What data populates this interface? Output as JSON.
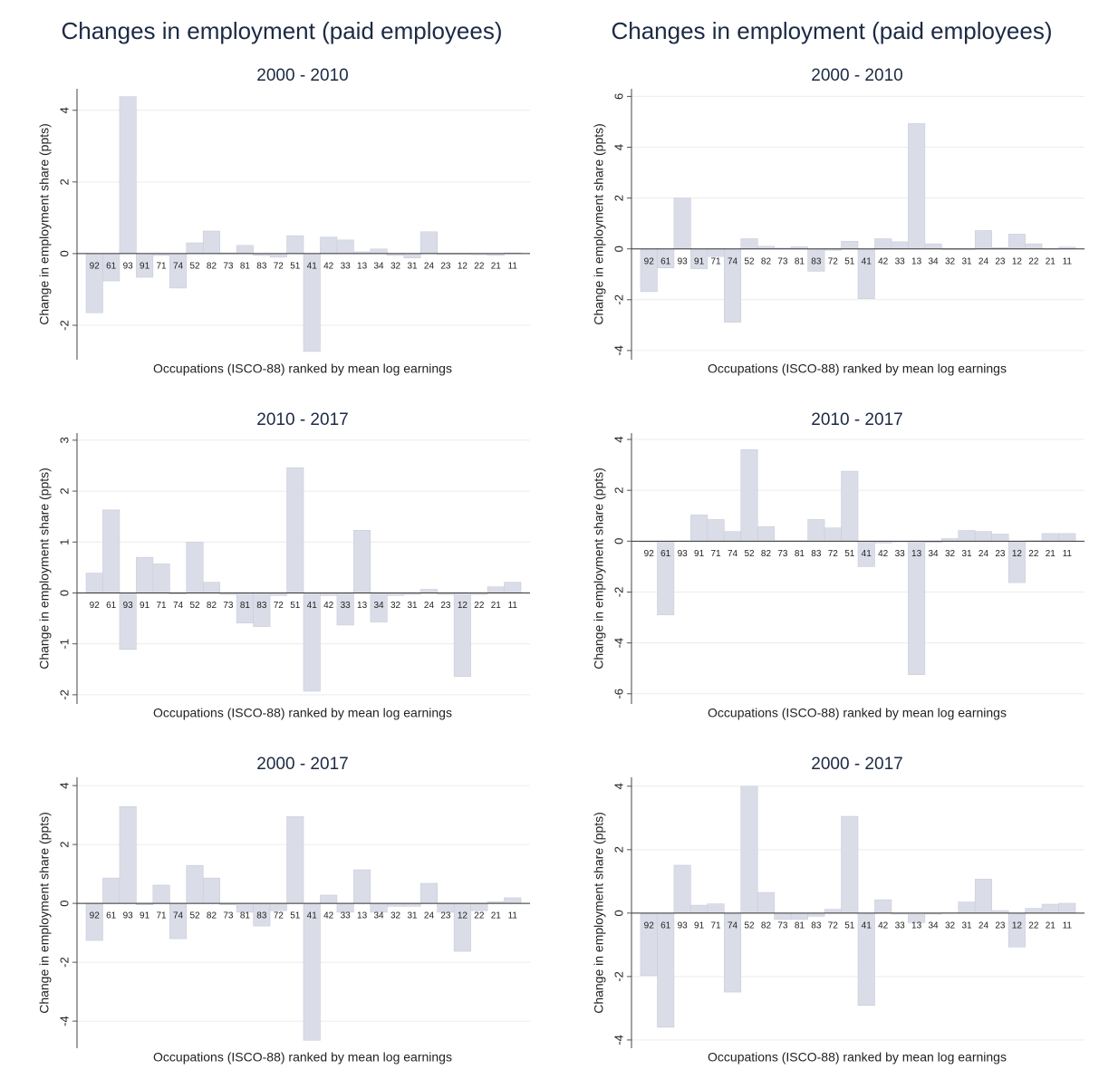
{
  "headings": [
    "Changes in employment (paid employees)",
    "Changes in employment (paid employees)"
  ],
  "chart_data": [
    {
      "type": "bar",
      "title": "2000 - 2010",
      "x_label": "Occupations (ISCO-88) ranked by mean log earnings",
      "y_label": "Change in employment share (ppts)",
      "color": "#dadde8",
      "grid": true,
      "categories": [
        "92",
        "61",
        "93",
        "91",
        "71",
        "74",
        "52",
        "82",
        "73",
        "81",
        "83",
        "72",
        "51",
        "41",
        "42",
        "33",
        "13",
        "34",
        "32",
        "31",
        "24",
        "23",
        "12",
        "22",
        "21",
        "11"
      ],
      "values": [
        -1.65,
        -0.76,
        4.38,
        -0.66,
        -0.05,
        -0.96,
        0.3,
        0.63,
        0.02,
        0.23,
        -0.05,
        -0.1,
        0.5,
        -2.73,
        0.46,
        0.38,
        0.05,
        0.13,
        -0.05,
        -0.12,
        0.61,
        -0.02,
        -0.02,
        -0.03,
        -0.05,
        0.02
      ],
      "ylim": [
        -2.96,
        4.6
      ],
      "yticks": [
        -2,
        0,
        2,
        4
      ]
    },
    {
      "type": "bar",
      "title": "2000 - 2010",
      "x_label": "Occupations (ISCO-88) ranked by mean log earnings",
      "y_label": "Change in employment share (ppts)",
      "color": "#dadde8",
      "grid": true,
      "categories": [
        "92",
        "61",
        "93",
        "91",
        "71",
        "74",
        "52",
        "82",
        "73",
        "81",
        "83",
        "72",
        "51",
        "41",
        "42",
        "33",
        "13",
        "34",
        "32",
        "31",
        "24",
        "23",
        "12",
        "22",
        "21",
        "11"
      ],
      "values": [
        -1.68,
        -0.75,
        2.0,
        -0.78,
        -0.3,
        -2.89,
        0.4,
        0.1,
        0.03,
        0.08,
        -0.88,
        -0.05,
        0.3,
        -1.96,
        0.4,
        0.28,
        4.93,
        0.2,
        -0.03,
        -0.03,
        0.72,
        0.05,
        0.58,
        0.2,
        -0.02,
        0.07
      ],
      "ylim": [
        -4.36,
        6.3
      ],
      "yticks": [
        -4,
        -2,
        0,
        2,
        4,
        6
      ]
    },
    {
      "type": "bar",
      "title": "2010 - 2017",
      "x_label": "Occupations (ISCO-88) ranked by mean log earnings",
      "y_label": "Change in employment share (ppts)",
      "color": "#dadde8",
      "grid": true,
      "categories": [
        "92",
        "61",
        "93",
        "91",
        "71",
        "74",
        "52",
        "82",
        "73",
        "81",
        "83",
        "72",
        "51",
        "41",
        "42",
        "33",
        "13",
        "34",
        "32",
        "31",
        "24",
        "23",
        "12",
        "22",
        "21",
        "11"
      ],
      "values": [
        0.39,
        1.63,
        -1.11,
        0.7,
        0.57,
        -0.02,
        1.0,
        0.21,
        -0.03,
        -0.59,
        -0.66,
        -0.05,
        2.46,
        -1.93,
        -0.05,
        -0.63,
        1.23,
        -0.57,
        -0.05,
        -0.03,
        0.07,
        -0.03,
        -1.64,
        -0.03,
        0.12,
        0.21
      ],
      "ylim": [
        -2.18,
        3.14
      ],
      "yticks": [
        -2,
        -1,
        0,
        1,
        2,
        3
      ]
    },
    {
      "type": "bar",
      "title": "2010 - 2017",
      "x_label": "Occupations (ISCO-88) ranked by mean log earnings",
      "y_label": "Change in employment share (ppts)",
      "color": "#dadde8",
      "grid": true,
      "categories": [
        "92",
        "61",
        "93",
        "91",
        "71",
        "74",
        "52",
        "82",
        "73",
        "81",
        "83",
        "72",
        "51",
        "41",
        "42",
        "33",
        "13",
        "34",
        "32",
        "31",
        "24",
        "23",
        "12",
        "22",
        "21",
        "11"
      ],
      "values": [
        -0.03,
        -2.9,
        0.01,
        1.03,
        0.85,
        0.38,
        3.6,
        0.57,
        0.02,
        0.02,
        0.85,
        0.52,
        2.75,
        -1.0,
        -0.07,
        -0.03,
        -5.25,
        -0.05,
        0.1,
        0.42,
        0.38,
        0.28,
        -1.63,
        0.02,
        0.3,
        0.3
      ],
      "ylim": [
        -6.4,
        4.25
      ],
      "yticks": [
        -6,
        -4,
        -2,
        0,
        2,
        4
      ]
    },
    {
      "type": "bar",
      "title": "2000 - 2017",
      "x_label": "Occupations (ISCO-88) ranked by mean log earnings",
      "y_label": "Change in employment share (ppts)",
      "color": "#dadde8",
      "grid": true,
      "categories": [
        "92",
        "61",
        "93",
        "91",
        "71",
        "74",
        "52",
        "82",
        "73",
        "81",
        "83",
        "72",
        "51",
        "41",
        "42",
        "33",
        "13",
        "34",
        "32",
        "31",
        "24",
        "23",
        "12",
        "22",
        "21",
        "11"
      ],
      "values": [
        -1.26,
        0.86,
        3.29,
        -0.05,
        0.62,
        -1.2,
        1.29,
        0.86,
        -0.05,
        -0.3,
        -0.77,
        -0.25,
        2.95,
        -4.65,
        0.28,
        -0.3,
        1.14,
        -0.3,
        -0.1,
        -0.1,
        0.68,
        -0.3,
        -1.63,
        -0.25,
        0.06,
        0.19
      ],
      "ylim": [
        -4.92,
        4.28
      ],
      "yticks": [
        -4,
        -2,
        0,
        2,
        4
      ]
    },
    {
      "type": "bar",
      "title": "2000 - 2017",
      "x_label": "Occupations (ISCO-88) ranked by mean log earnings",
      "y_label": "Change in employment share (ppts)",
      "color": "#dadde8",
      "grid": true,
      "categories": [
        "92",
        "61",
        "93",
        "91",
        "71",
        "74",
        "52",
        "82",
        "73",
        "81",
        "83",
        "72",
        "51",
        "41",
        "42",
        "33",
        "13",
        "34",
        "32",
        "31",
        "24",
        "23",
        "12",
        "22",
        "21",
        "11"
      ],
      "values": [
        -1.97,
        -3.6,
        1.51,
        0.25,
        0.29,
        -2.49,
        4.0,
        0.65,
        -0.2,
        -0.2,
        -0.1,
        0.12,
        3.05,
        -2.91,
        0.42,
        -0.03,
        -0.3,
        -0.03,
        0.01,
        0.35,
        1.07,
        0.08,
        -1.07,
        0.15,
        0.28,
        0.31
      ],
      "ylim": [
        -4.26,
        4.28
      ],
      "yticks": [
        -4,
        -2,
        0,
        2,
        4
      ]
    }
  ]
}
